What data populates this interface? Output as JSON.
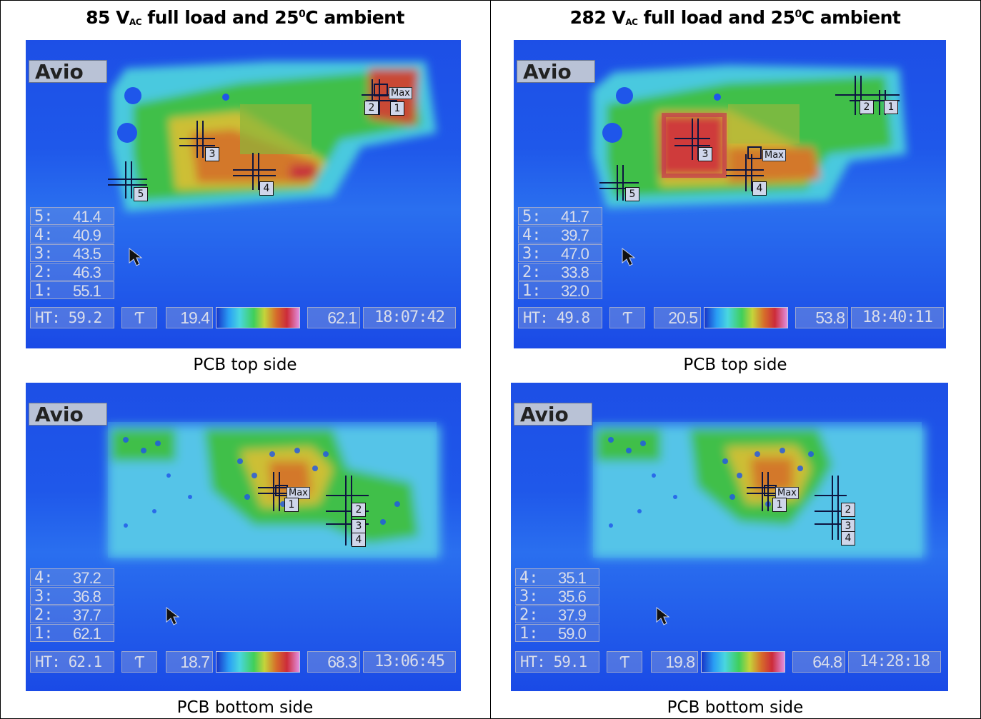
{
  "headers": {
    "left": {
      "volt": "85 V",
      "sub": "AC",
      "rest_pre": " full load and 25",
      "sup": "0",
      "rest_post": "C ambient"
    },
    "right": {
      "volt": "282 V",
      "sub": "AC",
      "rest_pre": " full load and 25",
      "sup": "0",
      "rest_post": "C ambient"
    }
  },
  "captions": {
    "tl": "PCB top side",
    "tr": "PCB top side",
    "bl": "PCB bottom side",
    "br": "PCB bottom side"
  },
  "camera_logo": "Avio",
  "max_label": "Max",
  "icon_glyph": "Ƭ",
  "panels": {
    "tl": {
      "rows": [
        {
          "label": "5:",
          "value": "41.4"
        },
        {
          "label": "4:",
          "value": "40.9"
        },
        {
          "label": "3:",
          "value": "43.5"
        },
        {
          "label": "2:",
          "value": "46.3"
        },
        {
          "label": "1:",
          "value": "55.1"
        }
      ],
      "ht": "HT: 59.2",
      "lo": "19.4",
      "hi": "62.1",
      "time": "18:07:42",
      "markers": [
        "1",
        "2",
        "3",
        "4",
        "5"
      ]
    },
    "tr": {
      "rows": [
        {
          "label": "5:",
          "value": "41.7"
        },
        {
          "label": "4:",
          "value": "39.7"
        },
        {
          "label": "3:",
          "value": "47.0"
        },
        {
          "label": "2:",
          "value": "33.8"
        },
        {
          "label": "1:",
          "value": "32.0"
        }
      ],
      "ht": "HT: 49.8",
      "lo": "20.5",
      "hi": "53.8",
      "time": "18:40:11",
      "markers": [
        "1",
        "2",
        "3",
        "4",
        "5"
      ]
    },
    "bl": {
      "rows": [
        {
          "label": "4:",
          "value": "37.2"
        },
        {
          "label": "3:",
          "value": "36.8"
        },
        {
          "label": "2:",
          "value": "37.7"
        },
        {
          "label": "1:",
          "value": "62.1"
        }
      ],
      "ht": "HT: 62.1",
      "lo": "18.7",
      "hi": "68.3",
      "time": "13:06:45",
      "markers": [
        "1",
        "2",
        "3",
        "4"
      ]
    },
    "br": {
      "rows": [
        {
          "label": "4:",
          "value": "35.1"
        },
        {
          "label": "3:",
          "value": "35.6"
        },
        {
          "label": "2:",
          "value": "37.9"
        },
        {
          "label": "1:",
          "value": "59.0"
        }
      ],
      "ht": "HT: 59.1",
      "lo": "19.8",
      "hi": "64.8",
      "time": "14:28:18",
      "markers": [
        "1",
        "2",
        "3",
        "4"
      ]
    }
  },
  "colors": {
    "background": "#1546e8",
    "cool": "#2a9ff5",
    "warm": "#3fcf5a",
    "hot": "#d66d2a",
    "hottest": "#cc2b3a"
  }
}
